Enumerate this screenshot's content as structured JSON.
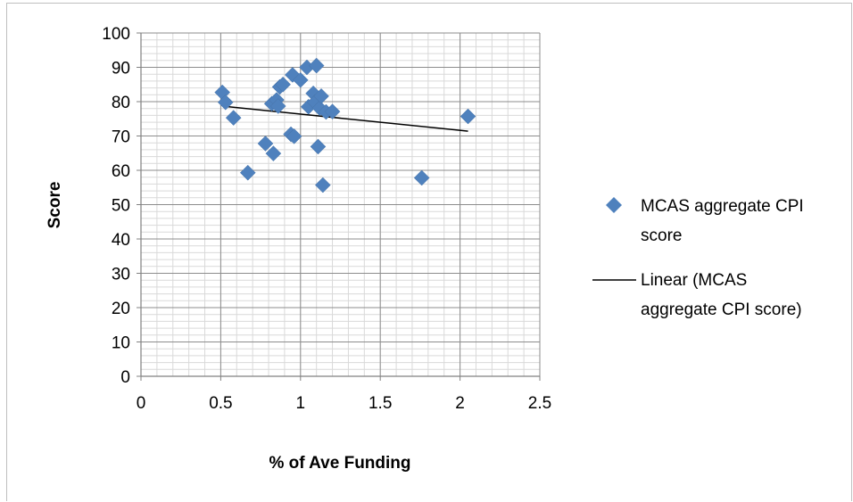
{
  "chart_data": {
    "type": "scatter",
    "xlabel": "% of Ave Funding",
    "ylabel": "Score",
    "xlim": [
      0,
      2.5
    ],
    "ylim": [
      0,
      100
    ],
    "x_ticks": [
      "0",
      "0.5",
      "1",
      "1.5",
      "2",
      "2.5"
    ],
    "y_ticks": [
      "0",
      "10",
      "20",
      "30",
      "40",
      "50",
      "60",
      "70",
      "80",
      "90",
      "100"
    ],
    "grid": true,
    "legend_position": "right",
    "series": [
      {
        "name": "MCAS aggregate CPI score",
        "color": "#4f81bd",
        "marker": "diamond",
        "x": [
          0.51,
          0.53,
          0.58,
          0.67,
          0.78,
          0.82,
          0.83,
          0.85,
          0.86,
          0.87,
          0.89,
          0.94,
          0.95,
          0.96,
          1.0,
          1.04,
          1.05,
          1.08,
          1.09,
          1.1,
          1.11,
          1.12,
          1.13,
          1.14,
          1.16,
          1.2,
          1.76,
          2.05
        ],
        "y": [
          82.7,
          79.8,
          75.3,
          59.3,
          67.8,
          79.4,
          64.9,
          80.5,
          78.7,
          84.3,
          85.0,
          70.5,
          87.8,
          69.9,
          86.3,
          90.0,
          78.5,
          82.4,
          79.8,
          90.5,
          66.9,
          78.1,
          81.6,
          55.7,
          77.0,
          77.1,
          57.8,
          75.7
        ]
      }
    ],
    "trendline": {
      "name": "Linear (MCAS aggregate CPI score)",
      "type": "linear",
      "color": "#000000",
      "x": [
        0.51,
        2.05
      ],
      "y": [
        78.7,
        71.4
      ]
    }
  },
  "legend": {
    "series_label_line1": "MCAS aggregate CPI",
    "series_label_line2": "score",
    "trend_label_line1": "Linear (MCAS",
    "trend_label_line2": "aggregate CPI score)"
  }
}
